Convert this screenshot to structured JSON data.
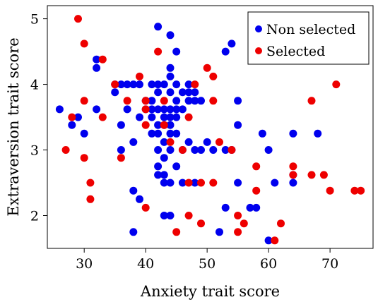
{
  "chart_data": {
    "type": "scatter",
    "xlabel": "Anxiety trait score",
    "ylabel": "Extraversion trait score",
    "xlim": [
      24,
      77
    ],
    "ylim": [
      1.5,
      5.2
    ],
    "x_ticks": [
      30,
      40,
      50,
      60,
      70
    ],
    "y_ticks": [
      2,
      3,
      4,
      5
    ],
    "grid": false,
    "legend_position": "top-right",
    "series": [
      {
        "name": "Non selected",
        "color": "#0000ee",
        "points": [
          [
            26,
            3.62
          ],
          [
            28,
            3.38
          ],
          [
            29,
            3.5
          ],
          [
            30,
            3.25
          ],
          [
            32,
            4.38
          ],
          [
            32,
            4.25
          ],
          [
            32,
            3.62
          ],
          [
            35,
            3.88
          ],
          [
            35,
            4.0
          ],
          [
            36,
            4.0
          ],
          [
            36,
            3.38
          ],
          [
            36,
            3.0
          ],
          [
            37,
            4.0
          ],
          [
            37,
            3.62
          ],
          [
            38,
            4.0
          ],
          [
            38,
            3.12
          ],
          [
            38,
            2.38
          ],
          [
            38,
            1.75
          ],
          [
            39,
            4.0
          ],
          [
            39,
            3.5
          ],
          [
            39,
            2.25
          ],
          [
            40,
            3.75
          ],
          [
            40,
            3.62
          ],
          [
            41,
            4.0
          ],
          [
            41,
            3.75
          ],
          [
            41,
            3.62
          ],
          [
            41,
            3.5
          ],
          [
            41,
            3.25
          ],
          [
            42,
            4.88
          ],
          [
            42,
            4.0
          ],
          [
            42,
            3.88
          ],
          [
            42,
            3.62
          ],
          [
            42,
            3.38
          ],
          [
            42,
            3.25
          ],
          [
            42,
            3.0
          ],
          [
            42,
            2.75
          ],
          [
            42,
            2.62
          ],
          [
            43,
            4.0
          ],
          [
            43,
            3.62
          ],
          [
            43,
            3.5
          ],
          [
            43,
            3.38
          ],
          [
            43,
            3.12
          ],
          [
            43,
            2.88
          ],
          [
            43,
            2.62
          ],
          [
            43,
            2.5
          ],
          [
            43,
            2.0
          ],
          [
            44,
            4.75
          ],
          [
            44,
            4.25
          ],
          [
            44,
            4.12
          ],
          [
            44,
            3.88
          ],
          [
            44,
            3.62
          ],
          [
            44,
            3.5
          ],
          [
            44,
            3.38
          ],
          [
            44,
            3.25
          ],
          [
            44,
            3.0
          ],
          [
            44,
            2.5
          ],
          [
            44,
            2.0
          ],
          [
            45,
            4.5
          ],
          [
            45,
            4.0
          ],
          [
            45,
            3.75
          ],
          [
            45,
            3.62
          ],
          [
            45,
            3.5
          ],
          [
            45,
            3.25
          ],
          [
            45,
            2.75
          ],
          [
            46,
            3.88
          ],
          [
            46,
            3.62
          ],
          [
            46,
            3.0
          ],
          [
            46,
            2.5
          ],
          [
            47,
            4.0
          ],
          [
            47,
            3.88
          ],
          [
            47,
            3.75
          ],
          [
            47,
            3.12
          ],
          [
            48,
            3.88
          ],
          [
            48,
            3.75
          ],
          [
            48,
            3.0
          ],
          [
            48,
            2.5
          ],
          [
            49,
            3.75
          ],
          [
            49,
            3.0
          ],
          [
            50,
            3.12
          ],
          [
            51,
            3.0
          ],
          [
            52,
            1.75
          ],
          [
            53,
            4.5
          ],
          [
            53,
            3.0
          ],
          [
            53,
            2.12
          ],
          [
            54,
            4.62
          ],
          [
            54,
            3.0
          ],
          [
            55,
            3.75
          ],
          [
            55,
            3.38
          ],
          [
            55,
            2.5
          ],
          [
            57,
            2.12
          ],
          [
            58,
            2.12
          ],
          [
            59,
            3.25
          ],
          [
            60,
            3.0
          ],
          [
            60,
            1.62
          ],
          [
            61,
            2.5
          ],
          [
            64,
            3.25
          ],
          [
            64,
            2.62
          ],
          [
            64,
            2.5
          ],
          [
            68,
            3.25
          ]
        ]
      },
      {
        "name": "Selected",
        "color": "#ee0000",
        "points": [
          [
            27,
            3.0
          ],
          [
            28,
            3.5
          ],
          [
            29,
            5.0
          ],
          [
            30,
            4.62
          ],
          [
            30,
            3.75
          ],
          [
            30,
            2.88
          ],
          [
            31,
            2.5
          ],
          [
            31,
            2.25
          ],
          [
            33,
            4.38
          ],
          [
            33,
            3.5
          ],
          [
            35,
            4.0
          ],
          [
            36,
            2.88
          ],
          [
            37,
            3.75
          ],
          [
            39,
            4.12
          ],
          [
            40,
            3.75
          ],
          [
            40,
            3.62
          ],
          [
            40,
            3.38
          ],
          [
            40,
            2.12
          ],
          [
            42,
            4.5
          ],
          [
            43,
            3.75
          ],
          [
            43,
            3.38
          ],
          [
            44,
            3.12
          ],
          [
            45,
            1.75
          ],
          [
            46,
            3.0
          ],
          [
            47,
            3.5
          ],
          [
            47,
            2.5
          ],
          [
            47,
            2.0
          ],
          [
            48,
            4.0
          ],
          [
            49,
            2.5
          ],
          [
            49,
            1.88
          ],
          [
            50,
            4.25
          ],
          [
            51,
            4.12
          ],
          [
            51,
            3.75
          ],
          [
            51,
            2.5
          ],
          [
            52,
            3.12
          ],
          [
            54,
            3.0
          ],
          [
            55,
            2.0
          ],
          [
            55,
            1.75
          ],
          [
            56,
            1.88
          ],
          [
            58,
            2.75
          ],
          [
            58,
            2.38
          ],
          [
            62,
            1.88
          ],
          [
            61,
            1.62
          ],
          [
            64,
            2.75
          ],
          [
            64,
            2.62
          ],
          [
            67,
            3.75
          ],
          [
            67,
            2.62
          ],
          [
            69,
            2.62
          ],
          [
            70,
            2.38
          ],
          [
            71,
            4.0
          ],
          [
            74,
            2.38
          ],
          [
            75,
            2.38
          ]
        ]
      }
    ]
  }
}
